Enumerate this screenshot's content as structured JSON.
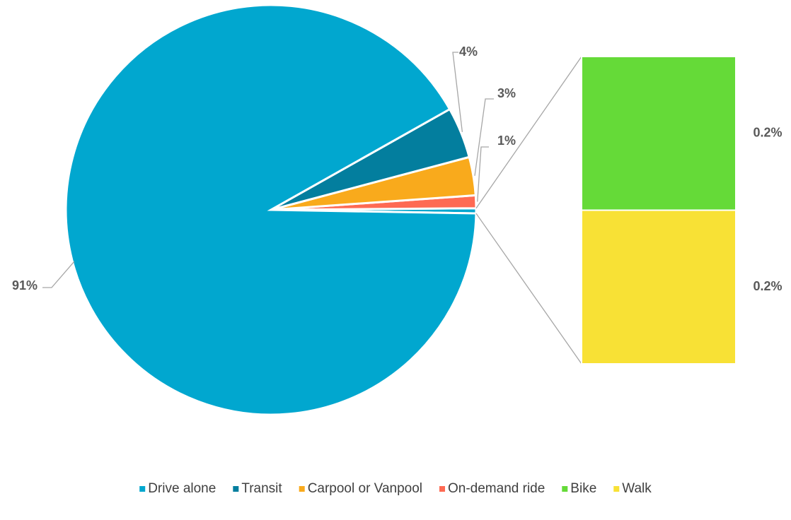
{
  "chart_data": {
    "type": "pie-of-bar",
    "categories": [
      "Drive alone",
      "Transit",
      "Carpool or Vanpool",
      "On-demand ride",
      "Bike",
      "Walk"
    ],
    "values": [
      91,
      4,
      3,
      1,
      0.2,
      0.2
    ],
    "value_labels": [
      "91%",
      "4%",
      "3%",
      "1%",
      "0.2%",
      "0.2%"
    ],
    "colors": [
      "#01a7cf",
      "#037e9e",
      "#f9aa1c",
      "#fe6a53",
      "#65da38",
      "#f8e135"
    ],
    "split": 2,
    "legend": "bottom"
  }
}
